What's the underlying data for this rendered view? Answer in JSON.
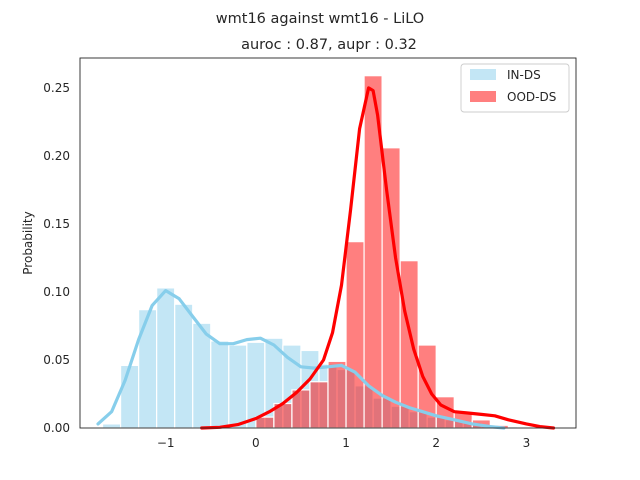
{
  "chart_data": {
    "type": "histogram",
    "title": "wmt16 against wmt16  - LiLO",
    "subtitle": "auroc : 0.87, aupr : 0.32",
    "xlabel": "",
    "ylabel": "Probability",
    "xlim": [
      -1.95,
      3.55
    ],
    "ylim": [
      0,
      0.272
    ],
    "x_ticks": [
      -1,
      0,
      1,
      2,
      3
    ],
    "x_tick_labels": [
      "−1",
      "0",
      "1",
      "2",
      "3"
    ],
    "y_ticks": [
      0.0,
      0.05,
      0.1,
      0.15,
      0.2,
      0.25
    ],
    "y_tick_labels": [
      "0.00",
      "0.05",
      "0.10",
      "0.15",
      "0.20",
      "0.25"
    ],
    "grid": false,
    "legend_position": "top-right",
    "series": [
      {
        "name": "IN-DS",
        "color": "#87ceeb",
        "bar_alpha": 0.5,
        "bin_width": 0.2,
        "bin_starts": [
          -1.7,
          -1.5,
          -1.3,
          -1.1,
          -0.9,
          -0.7,
          -0.5,
          -0.3,
          -0.1,
          0.1,
          0.3,
          0.5,
          0.7,
          0.9,
          1.1,
          1.3,
          1.5,
          1.7,
          1.9,
          2.1,
          2.3,
          2.5,
          2.7
        ],
        "values": [
          0.003,
          0.046,
          0.087,
          0.103,
          0.091,
          0.077,
          0.064,
          0.061,
          0.063,
          0.066,
          0.061,
          0.057,
          0.047,
          0.043,
          0.031,
          0.022,
          0.016,
          0.012,
          0.008,
          0.006,
          0.004,
          0.002,
          0.001
        ],
        "kde_x": [
          -1.75,
          -1.6,
          -1.45,
          -1.3,
          -1.15,
          -1.0,
          -0.85,
          -0.7,
          -0.55,
          -0.4,
          -0.25,
          -0.1,
          0.05,
          0.2,
          0.35,
          0.5,
          0.65,
          0.8,
          0.95,
          1.1,
          1.25,
          1.4,
          1.55,
          1.7,
          1.85,
          2.0,
          2.2,
          2.4,
          2.6,
          2.75
        ],
        "kde_y": [
          0.003,
          0.012,
          0.035,
          0.065,
          0.09,
          0.101,
          0.095,
          0.082,
          0.069,
          0.062,
          0.062,
          0.065,
          0.066,
          0.061,
          0.052,
          0.045,
          0.044,
          0.045,
          0.046,
          0.041,
          0.031,
          0.024,
          0.019,
          0.015,
          0.012,
          0.009,
          0.006,
          0.003,
          0.001,
          0.0
        ]
      },
      {
        "name": "OOD-DS",
        "color": "#ff0000",
        "bar_alpha": 0.5,
        "bin_width": 0.2,
        "bin_starts": [
          0.0,
          0.2,
          0.4,
          0.6,
          0.8,
          1.0,
          1.2,
          1.4,
          1.6,
          1.8,
          2.0,
          2.2,
          2.4,
          2.6
        ],
        "values": [
          0.008,
          0.018,
          0.028,
          0.034,
          0.049,
          0.137,
          0.259,
          0.206,
          0.123,
          0.061,
          0.023,
          0.012,
          0.006,
          0.002
        ],
        "kde_x": [
          -0.6,
          -0.4,
          -0.2,
          0.0,
          0.15,
          0.3,
          0.45,
          0.6,
          0.75,
          0.85,
          0.95,
          1.05,
          1.15,
          1.25,
          1.3,
          1.35,
          1.45,
          1.55,
          1.65,
          1.75,
          1.85,
          1.95,
          2.05,
          2.2,
          2.35,
          2.5,
          2.65,
          2.8,
          3.0,
          3.15,
          3.3
        ],
        "kde_y": [
          0.0,
          0.0005,
          0.0025,
          0.007,
          0.012,
          0.018,
          0.026,
          0.036,
          0.05,
          0.07,
          0.105,
          0.16,
          0.22,
          0.25,
          0.248,
          0.23,
          0.175,
          0.125,
          0.086,
          0.058,
          0.038,
          0.025,
          0.017,
          0.012,
          0.011,
          0.01,
          0.009,
          0.006,
          0.003,
          0.001,
          0.0
        ]
      }
    ]
  }
}
